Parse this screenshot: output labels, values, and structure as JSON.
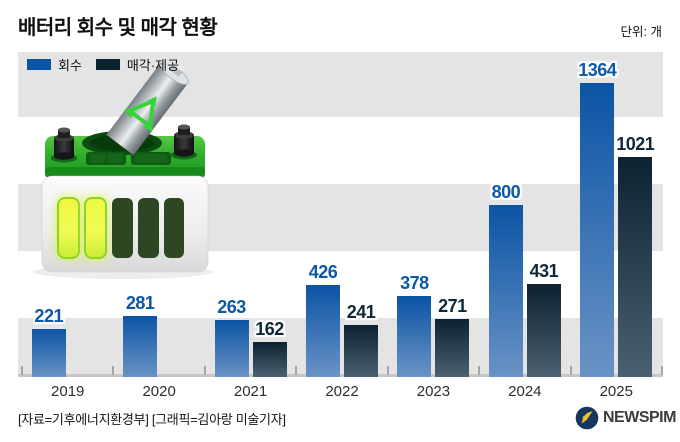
{
  "header": {
    "title": "배터리 회수 및 매각 현황",
    "unit": "단위: 개"
  },
  "chart_data": {
    "type": "bar",
    "title": "배터리 회수 및 매각 현황",
    "unit": "개",
    "categories": [
      "2019",
      "2020",
      "2021",
      "2022",
      "2023",
      "2024",
      "2025"
    ],
    "series": [
      {
        "name": "회수",
        "values": [
          221,
          281,
          263,
          426,
          378,
          800,
          1364
        ],
        "color_top": "#0b54a5",
        "color_bottom": "#6a93c5",
        "label_color": "#0b57a8"
      },
      {
        "name": "매각·제공",
        "values": [
          null,
          null,
          162,
          241,
          271,
          431,
          1021
        ],
        "color_top": "#0d2231",
        "color_bottom": "#4a6170",
        "label_color": "#0f2838"
      }
    ],
    "ylim": [
      0,
      1420
    ],
    "grid": "horizontal-bands",
    "legend_position": "top-left"
  },
  "illustration": {
    "name": "battery-recycling-illustration"
  },
  "footer": {
    "credit": "[자료=기후에너지환경부] [그래픽=김아랑 미술기자]",
    "logo_text": "NEWSPIM"
  },
  "colors": {
    "band": "#e4e4e4",
    "axis_line": "#c7c7c7",
    "tick": "#a6a6a6",
    "logo_circle": "#16365f",
    "logo_accent": "#f3c01c"
  }
}
